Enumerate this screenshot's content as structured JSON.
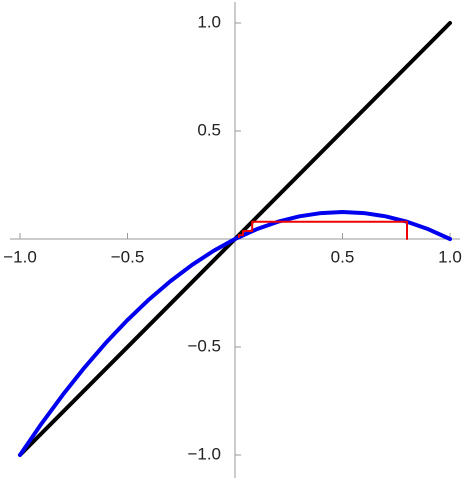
{
  "chart_data": {
    "type": "line",
    "xlim": [
      -1,
      1
    ],
    "ylim": [
      -1,
      1
    ],
    "xticks": [
      {
        "value": -1,
        "label": "−1.0"
      },
      {
        "value": -0.5,
        "label": "−0.5"
      },
      0.5,
      {
        "value": 1,
        "label": "1.0"
      }
    ],
    "yticks": [
      {
        "value": -1,
        "label": "−1.0"
      },
      {
        "value": -0.5,
        "label": "−0.5"
      },
      0.5,
      {
        "value": 1,
        "label": "1.0"
      }
    ],
    "series": [
      {
        "color": "#000000",
        "x": [
          -1,
          1
        ],
        "values": [
          -1,
          1
        ]
      },
      {
        "color": "#0000ee",
        "x": [
          -1,
          -0.9,
          -0.8,
          -0.7,
          -0.6,
          -0.5,
          -0.4,
          -0.3,
          -0.2,
          -0.1,
          0,
          0.1,
          0.2,
          0.3,
          0.4,
          0.5,
          0.6,
          0.7,
          0.8,
          0.9,
          1
        ],
        "values": [
          -1,
          -0.855,
          -0.72,
          -0.595,
          -0.48,
          -0.375,
          -0.28,
          -0.195,
          -0.12,
          -0.055,
          0,
          0.045,
          0.08,
          0.105,
          0.12,
          0.125,
          0.12,
          0.105,
          0.08,
          0.045,
          0
        ]
      },
      {
        "color": "#ee0000",
        "x": [
          0.8,
          0.8,
          0.08,
          0.08,
          0.037,
          0.037,
          0.018,
          0.018
        ],
        "values": [
          0,
          0.08,
          0.08,
          0.037,
          0.037,
          0.018,
          0.018,
          0.009
        ]
      }
    ]
  }
}
